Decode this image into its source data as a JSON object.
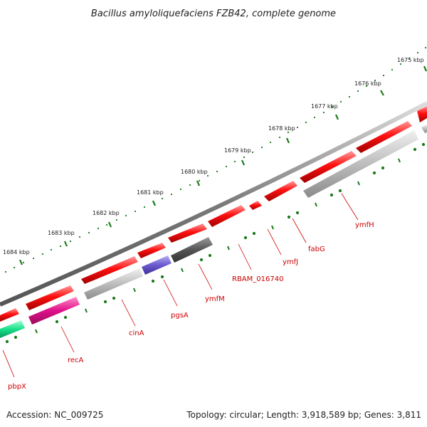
{
  "map": {
    "title": "Bacillus amyloliquefaciens FZB42, complete genome",
    "ticks": [
      "1675 kbp",
      "1676 kbp",
      "1677 kbp",
      "1678 kbp",
      "1679 kbp",
      "1680 kbp",
      "1681 kbp",
      "1682 kbp",
      "1683 kbp",
      "1684 kbp"
    ],
    "genes": [
      {
        "name": "ymfH",
        "color": "#e00000"
      },
      {
        "name": "fabG",
        "color": "#e00000"
      },
      {
        "name": "ymfJ",
        "color": "#e00000"
      },
      {
        "name": "RBAM_016740",
        "color": "#e00000"
      },
      {
        "name": "ymfM",
        "color": "#e00000"
      },
      {
        "name": "pgsA",
        "color": "#e00000"
      },
      {
        "name": "cinA",
        "color": "#e00000"
      },
      {
        "name": "recA",
        "color": "#e00000"
      },
      {
        "name": "pbpX",
        "color": "#e00000"
      }
    ],
    "colors": {
      "forward_gene": "#e60000",
      "reverse_gray": "#b0b0b0",
      "reverse_dark": "#555555",
      "reverse_purple": "#6a5acd",
      "reverse_magenta": "#e0108a",
      "reverse_green": "#18e08a",
      "backbone": "#777777",
      "ticks": "#1a7a1a",
      "label": "#cc0000"
    }
  },
  "footer": {
    "accession": "Accession: NC_009725",
    "summary": "Topology: circular; Length: 3,918,589 bp; Genes: 3,811"
  }
}
